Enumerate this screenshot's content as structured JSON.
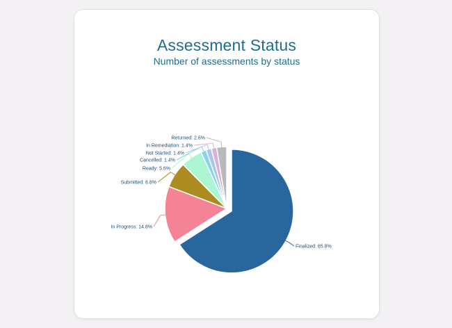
{
  "chart_data": {
    "type": "pie",
    "title": "Assessment Status",
    "subtitle": "Number of assessments by status",
    "legend": "none",
    "slices": [
      {
        "name": "Finalized",
        "value": 65.8,
        "label": "Finalized: 65.8%",
        "color": "#29669e",
        "exploded": true
      },
      {
        "name": "In Progress",
        "value": 14.8,
        "label": "In Progress: 14.8%",
        "color": "#f48396"
      },
      {
        "name": "Submitted",
        "value": 6.8,
        "label": "Submitted: 6.8%",
        "color": "#ac8b21"
      },
      {
        "name": "Ready",
        "value": 5.6,
        "label": "Ready: 5.6%",
        "color": "#abf5d2"
      },
      {
        "name": "Cancelled",
        "value": 1.4,
        "label": "Cancelled: 1.4%",
        "color": "#8ad1ea"
      },
      {
        "name": "Not Started",
        "value": 1.4,
        "label": "Not Started: 1.4%",
        "color": "#a8c6ef"
      },
      {
        "name": "In Remediation",
        "value": 1.4,
        "label": "In Remediation: 1.4%",
        "color": "#d8b2d5"
      },
      {
        "name": "Returned",
        "value": 2.6,
        "label": "Returned: 2.6%",
        "color": "#b9b9b9"
      }
    ]
  }
}
